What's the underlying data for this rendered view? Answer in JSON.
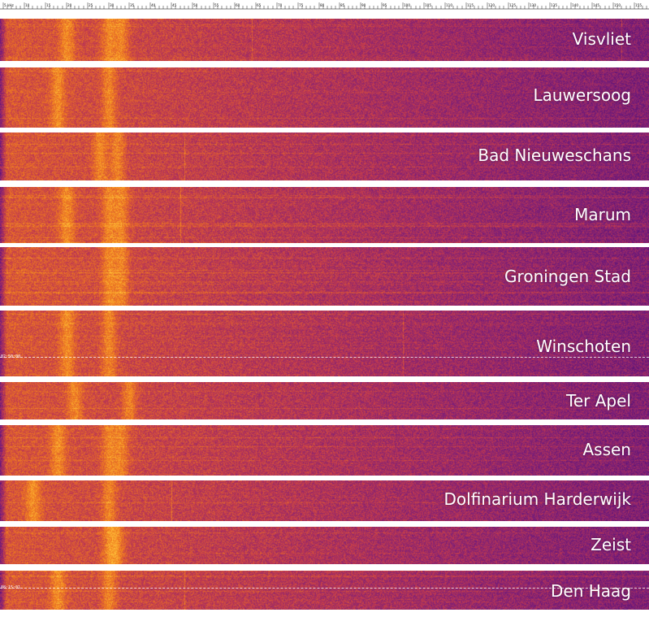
{
  "chart_data": {
    "type": "heatmap",
    "x_axis": {
      "unit": "kHz",
      "first_tick_label": "5 kHz",
      "tick_labels": [
        "5 kHz",
        "10",
        "15",
        "20",
        "25",
        "30",
        "35",
        "40",
        "45",
        "50",
        "55",
        "60",
        "65",
        "70",
        "75",
        "80",
        "85",
        "90",
        "95",
        "100",
        "105",
        "110",
        "115",
        "120",
        "125",
        "130",
        "135",
        "140",
        "145",
        "150",
        "155"
      ],
      "range": [
        5,
        158
      ]
    },
    "colormap": [
      "#3f0a6e",
      "#7a1e7a",
      "#c23a4e",
      "#f07a1e",
      "#ffc23a"
    ],
    "panels": [
      {
        "location": "Visvliet",
        "hotspots_khz": [
          20,
          30,
          33
        ],
        "lines_khz": [
          64,
          152
        ]
      },
      {
        "location": "Lauwersoog",
        "hotspots_khz": [
          18,
          30
        ],
        "lines_khz": []
      },
      {
        "location": "Bad Nieuweschans",
        "hotspots_khz": [
          28,
          32
        ],
        "lines_khz": [
          48
        ]
      },
      {
        "location": "Marum",
        "hotspots_khz": [
          20,
          30,
          33
        ],
        "lines_khz": [
          47
        ]
      },
      {
        "location": "Groningen Stad",
        "hotspots_khz": [
          30,
          33
        ],
        "lines_khz": []
      },
      {
        "location": "Winschoten",
        "hotspots_khz": [
          20,
          30
        ],
        "lines_khz": [
          100
        ],
        "timestamp": "02:50:00"
      },
      {
        "location": "Ter Apel",
        "hotspots_khz": [
          22,
          35
        ],
        "lines_khz": []
      },
      {
        "location": "Assen",
        "hotspots_khz": [
          18,
          30,
          33
        ],
        "lines_khz": []
      },
      {
        "location": "Dolfinarium Harderwijk",
        "hotspots_khz": [
          12,
          30
        ],
        "lines_khz": [
          45
        ]
      },
      {
        "location": "Zeist",
        "hotspots_khz": [
          30,
          32
        ],
        "lines_khz": []
      },
      {
        "location": "Den Haag",
        "hotspots_khz": [
          18,
          30
        ],
        "lines_khz": [
          48
        ],
        "timestamp": "08:15:01"
      }
    ]
  }
}
